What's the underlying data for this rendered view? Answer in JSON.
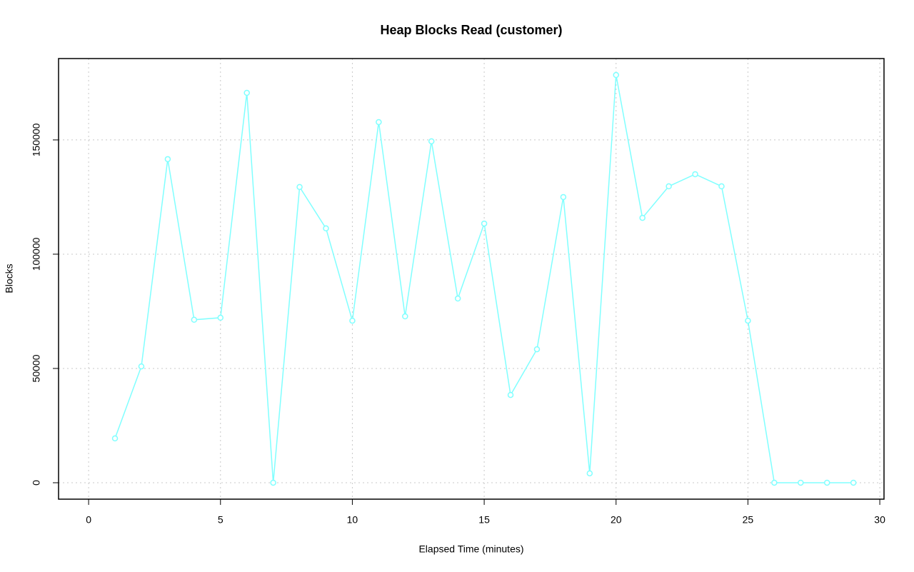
{
  "chart_data": {
    "type": "line",
    "title": "Heap Blocks Read (customer)",
    "x_label": "Elapsed Time (minutes)",
    "y_label": "Blocks",
    "x": [
      1,
      2,
      3,
      4,
      5,
      6,
      7,
      8,
      9,
      10,
      11,
      12,
      13,
      14,
      15,
      16,
      17,
      18,
      19,
      20,
      21,
      22,
      23,
      24,
      25,
      26,
      27,
      28,
      29
    ],
    "series": [
      {
        "name": "customer",
        "color": "#80ffff",
        "values": [
          19400,
          50900,
          141600,
          71300,
          72200,
          170600,
          0,
          129400,
          111300,
          70900,
          157800,
          72800,
          149400,
          80600,
          113400,
          38400,
          58400,
          125000,
          4100,
          178400,
          115900,
          129700,
          135000,
          129700,
          70900,
          0,
          0,
          0,
          0
        ]
      }
    ],
    "xlim": [
      -1.14,
      30.16
    ],
    "xticks": [
      0,
      5,
      10,
      15,
      20,
      25,
      30
    ],
    "ylim": [
      -7190,
      185600
    ],
    "yticks": [
      0,
      50000,
      100000,
      150000
    ],
    "grid": true,
    "markers": "open-circle"
  }
}
